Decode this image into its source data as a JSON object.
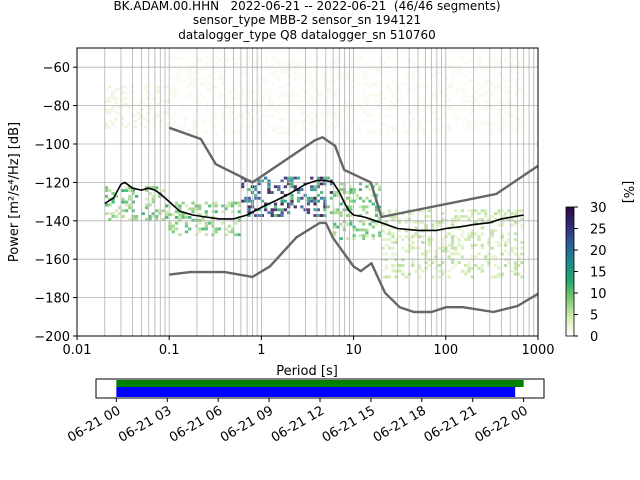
{
  "title_lines": [
    "BK.ADAM.00.HHN   2022-06-21 -- 2022-06-21  (46/46 segments)",
    "sensor_type MBB-2 sensor_sn 194121",
    "datalogger_type Q8 datalogger_sn 510760"
  ],
  "chart_data": {
    "type": "heatmap",
    "xlabel": "Period [s]",
    "ylabel": "Power [m²/s⁴/Hz] [dB]",
    "xscale": "log",
    "xlim": [
      0.01,
      1000
    ],
    "ylim": [
      -200,
      -50
    ],
    "x_ticks": [
      0.01,
      0.1,
      1,
      10,
      100,
      1000
    ],
    "x_tick_labels": [
      "0.01",
      "0.1",
      "1",
      "10",
      "100",
      "1000"
    ],
    "y_ticks": [
      -200,
      -180,
      -160,
      -140,
      -120,
      -100,
      -80,
      -60
    ],
    "y_tick_labels": [
      "−200",
      "−180",
      "−160",
      "−140",
      "−120",
      "−100",
      "−80",
      "−60"
    ],
    "grid": true,
    "colorbar": {
      "label": "[%]",
      "range": [
        0,
        30
      ],
      "ticks": [
        0,
        5,
        10,
        15,
        20,
        25,
        30
      ],
      "colormap": [
        "#ffffff",
        "#d6ecb4",
        "#7fca6e",
        "#23a86a",
        "#1d8b8c",
        "#2c5d99",
        "#33297a",
        "#2b0a3d"
      ]
    },
    "series": [
      {
        "name": "mode",
        "color": "#000000",
        "points": [
          [
            0.02,
            -131
          ],
          [
            0.025,
            -128
          ],
          [
            0.03,
            -121
          ],
          [
            0.033,
            -120
          ],
          [
            0.04,
            -123
          ],
          [
            0.05,
            -124
          ],
          [
            0.06,
            -123
          ],
          [
            0.07,
            -124
          ],
          [
            0.08,
            -126
          ],
          [
            0.1,
            -130
          ],
          [
            0.13,
            -135
          ],
          [
            0.18,
            -137
          ],
          [
            0.25,
            -138
          ],
          [
            0.35,
            -139
          ],
          [
            0.5,
            -139
          ],
          [
            0.7,
            -137
          ],
          [
            1,
            -133
          ],
          [
            1.5,
            -129
          ],
          [
            2,
            -126
          ],
          [
            3,
            -121
          ],
          [
            4,
            -119
          ],
          [
            5,
            -119
          ],
          [
            6,
            -120
          ],
          [
            7,
            -125
          ],
          [
            8,
            -131
          ],
          [
            9,
            -135
          ],
          [
            10,
            -137
          ],
          [
            13,
            -138
          ],
          [
            20,
            -141
          ],
          [
            30,
            -144
          ],
          [
            50,
            -145
          ],
          [
            80,
            -145
          ],
          [
            100,
            -144
          ],
          [
            150,
            -143
          ],
          [
            200,
            -142
          ],
          [
            300,
            -141
          ],
          [
            400,
            -139
          ],
          [
            700,
            -137
          ]
        ]
      },
      {
        "name": "noise-model-upper",
        "color": "#666666",
        "points": [
          [
            0.1,
            -91.5
          ],
          [
            0.22,
            -97.4
          ],
          [
            0.32,
            -110.5
          ],
          [
            0.8,
            -120
          ],
          [
            3.8,
            -98
          ],
          [
            4.6,
            -96.5
          ],
          [
            6.3,
            -101
          ],
          [
            7.9,
            -113.5
          ],
          [
            15.4,
            -120
          ],
          [
            20,
            -138
          ],
          [
            354,
            -126
          ],
          [
            1000,
            -111.4
          ]
        ]
      },
      {
        "name": "noise-model-lower",
        "color": "#666666",
        "points": [
          [
            0.1,
            -168
          ],
          [
            0.17,
            -166.7
          ],
          [
            0.4,
            -166.7
          ],
          [
            0.8,
            -169.2
          ],
          [
            1.24,
            -163.7
          ],
          [
            2.4,
            -148.6
          ],
          [
            4.3,
            -141.1
          ],
          [
            5,
            -141.1
          ],
          [
            6,
            -149
          ],
          [
            10,
            -163.8
          ],
          [
            12,
            -166.2
          ],
          [
            15.6,
            -162.1
          ],
          [
            21.9,
            -177.5
          ],
          [
            31.6,
            -185
          ],
          [
            45,
            -187.5
          ],
          [
            70,
            -187.5
          ],
          [
            101,
            -185
          ],
          [
            154,
            -185
          ],
          [
            328,
            -187.5
          ],
          [
            600,
            -184.4
          ],
          [
            1000,
            -178
          ]
        ]
      }
    ],
    "density_bands": [
      {
        "x": [
          0.02,
          0.09
        ],
        "y": [
          -140,
          -123
        ],
        "percent": 10
      },
      {
        "x": [
          0.09,
          0.6
        ],
        "y": [
          -148,
          -130
        ],
        "percent": 10
      },
      {
        "x": [
          0.6,
          6
        ],
        "y": [
          -138,
          -118
        ],
        "percent": 25
      },
      {
        "x": [
          6,
          20
        ],
        "y": [
          -150,
          -120
        ],
        "percent": 10
      },
      {
        "x": [
          20,
          700
        ],
        "y": [
          -170,
          -135
        ],
        "percent": 5
      },
      {
        "x": [
          0.02,
          0.1
        ],
        "y": [
          -92,
          -70
        ],
        "percent": 2
      },
      {
        "x": [
          0.1,
          700
        ],
        "y": [
          -95,
          -55
        ],
        "percent": 1
      }
    ]
  },
  "timeline": {
    "tick_labels": [
      "06-21 00",
      "06-21 03",
      "06-21 06",
      "06-21 09",
      "06-21 12",
      "06-21 15",
      "06-21 18",
      "06-21 21",
      "06-22 00"
    ],
    "range_hours": [
      -1.2,
      25.2
    ],
    "bars": [
      {
        "name": "available-data",
        "color": "#008000",
        "start_hour": 0,
        "end_hour": 24.0
      },
      {
        "name": "used-segments",
        "color": "#0000ff",
        "start_hour": 0,
        "end_hour": 23.5
      }
    ]
  }
}
